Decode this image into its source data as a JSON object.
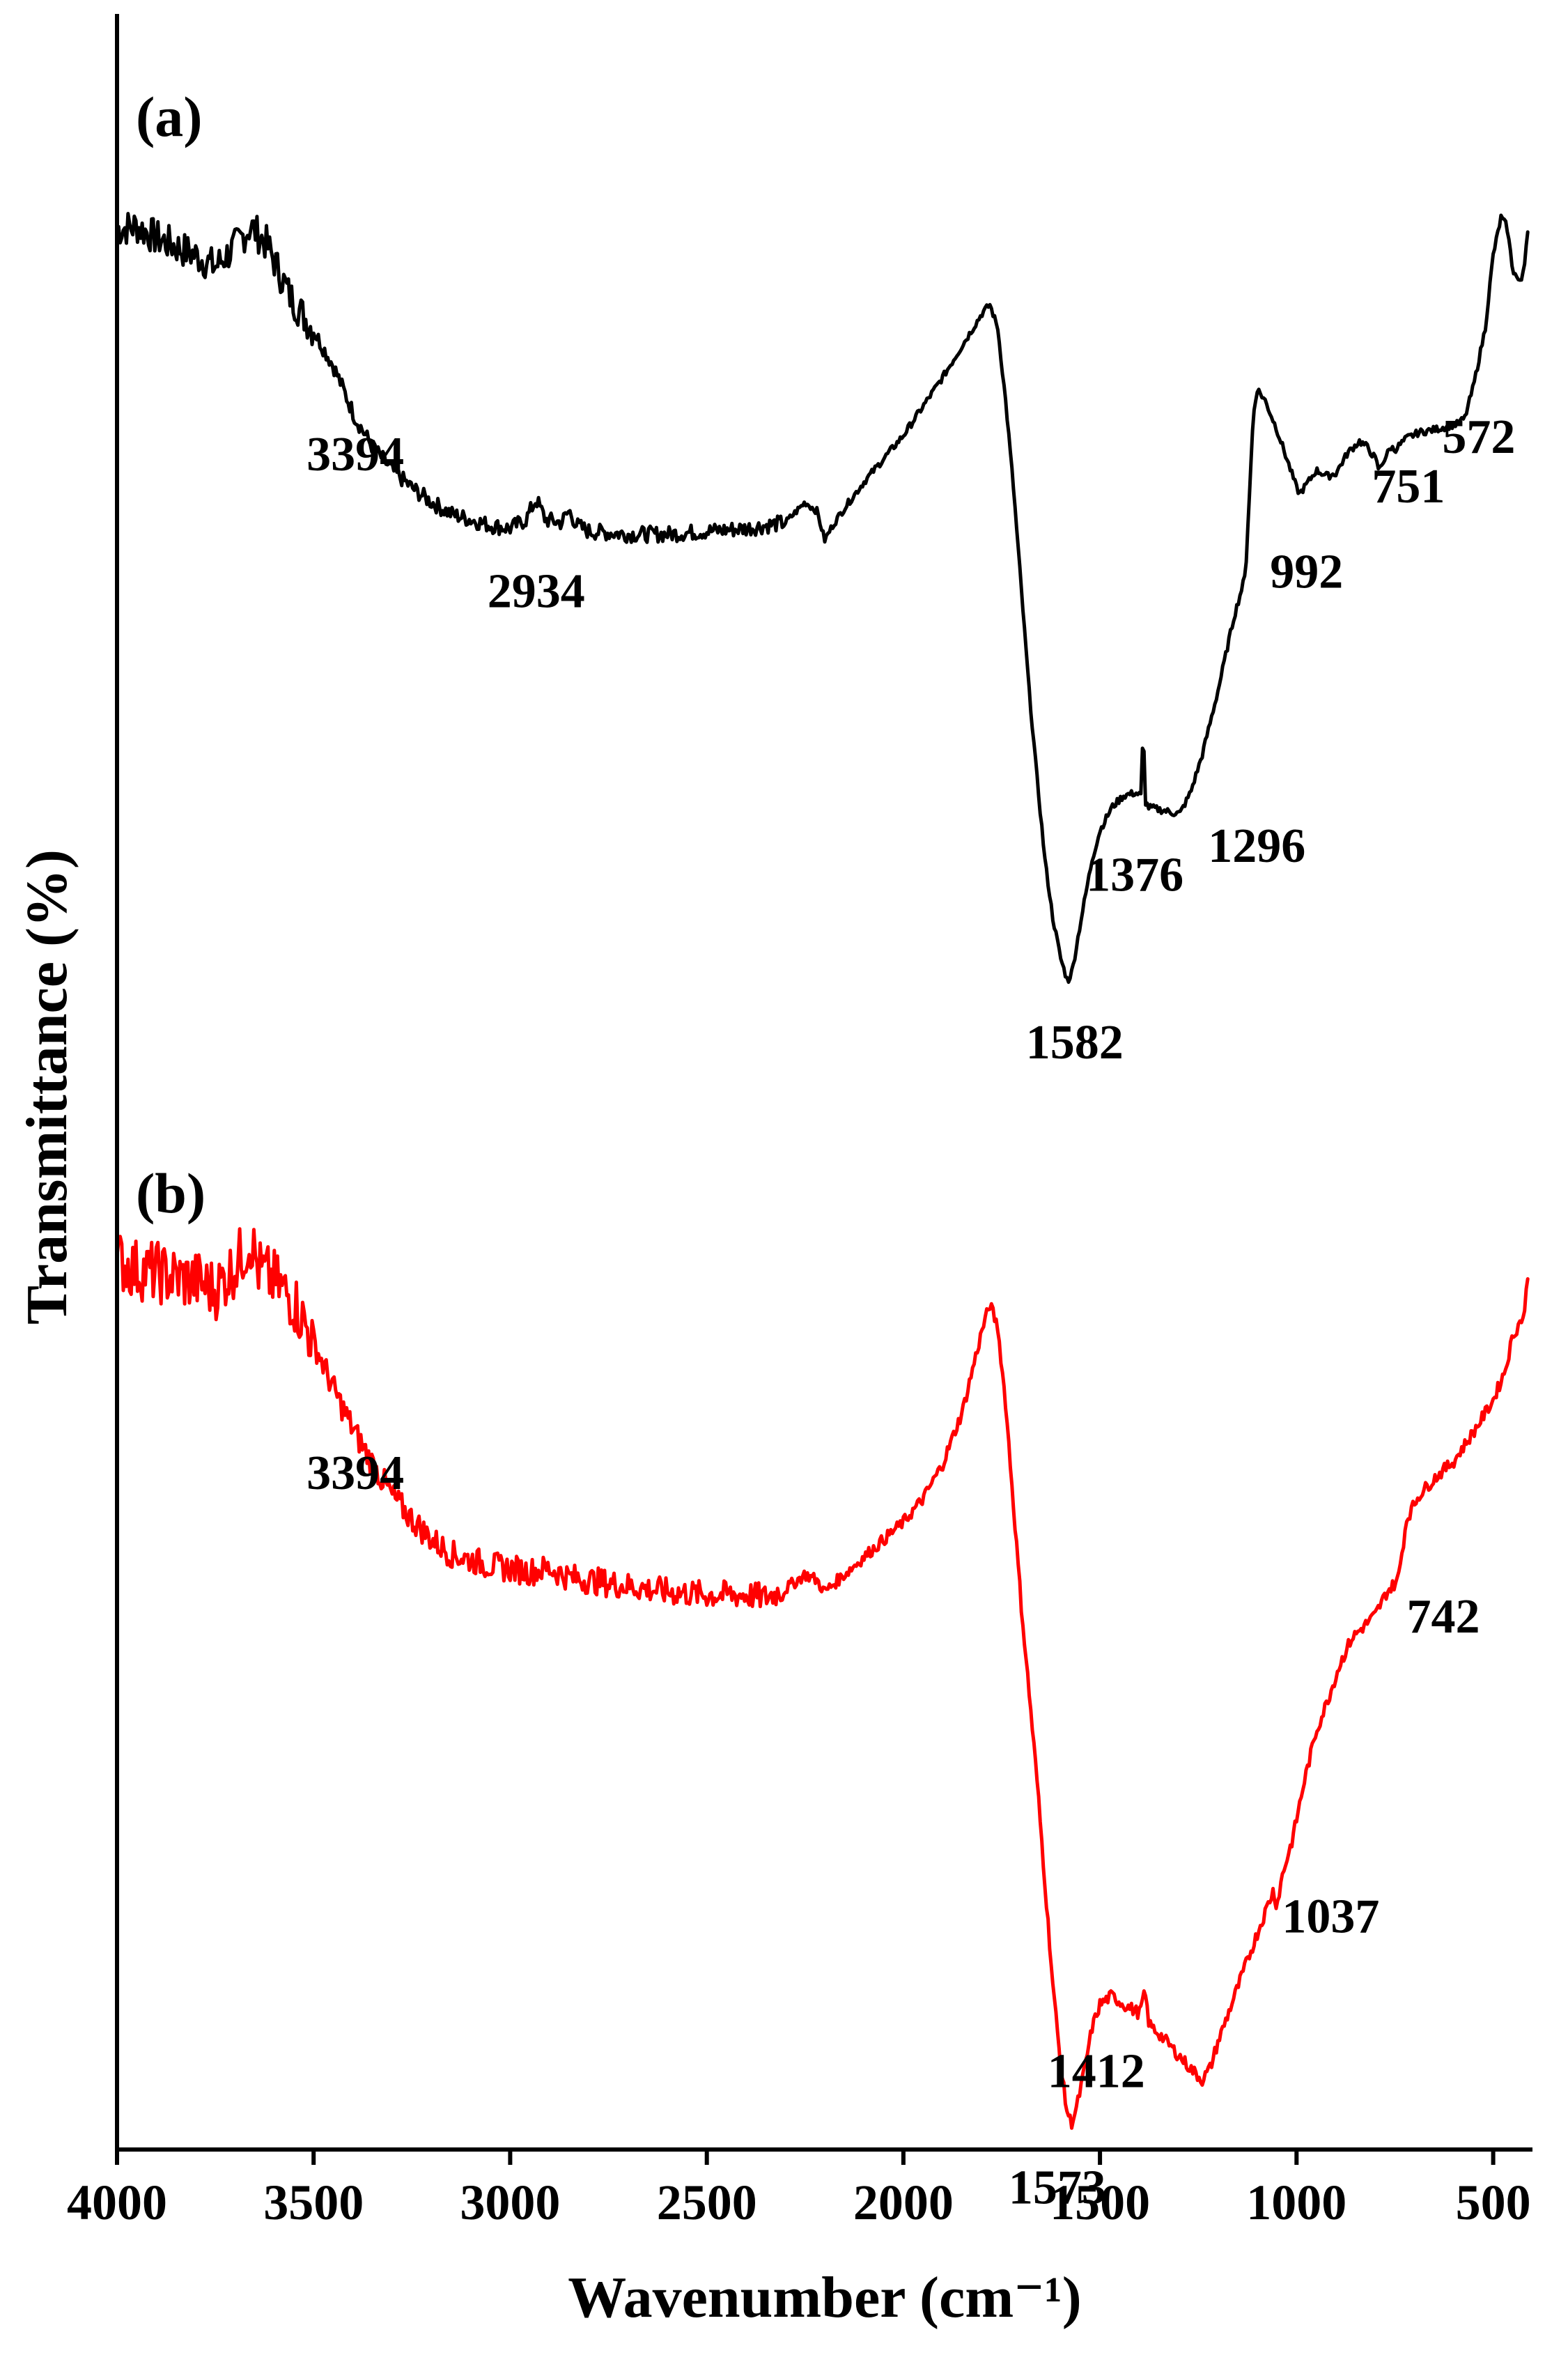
{
  "chart_data": {
    "type": "line",
    "title": "",
    "xlabel": "Wavenumber (cm⁻¹)",
    "ylabel": "Transmittance (%)",
    "xlim": [
      4000,
      400
    ],
    "x_reversed": true,
    "xticks": [
      "4000",
      "3500",
      "3000",
      "2500",
      "2000",
      "1500",
      "1000",
      "500"
    ],
    "grid": false,
    "legend": "none",
    "series": [
      {
        "panel": "(a)",
        "color": "#000000",
        "points": [
          [
            4000,
            8.9
          ],
          [
            3950,
            9.0
          ],
          [
            3900,
            8.6
          ],
          [
            3850,
            8.3
          ],
          [
            3800,
            8.0
          ],
          [
            3750,
            7.6
          ],
          [
            3700,
            8.3
          ],
          [
            3660,
            9.0
          ],
          [
            3620,
            8.4
          ],
          [
            3560,
            6.6
          ],
          [
            3500,
            5.4
          ],
          [
            3450,
            4.2
          ],
          [
            3394,
            2.4
          ],
          [
            3350,
            1.4
          ],
          [
            3300,
            0.6
          ],
          [
            3250,
            0.0
          ],
          [
            3200,
            -0.5
          ],
          [
            3150,
            -0.9
          ],
          [
            3100,
            -1.1
          ],
          [
            3050,
            -1.3
          ],
          [
            3000,
            -1.4
          ],
          [
            2960,
            -1.1
          ],
          [
            2934,
            -0.4
          ],
          [
            2910,
            -1.1
          ],
          [
            2870,
            -1.2
          ],
          [
            2850,
            -0.8
          ],
          [
            2830,
            -1.3
          ],
          [
            2800,
            -1.5
          ],
          [
            2700,
            -1.6
          ],
          [
            2600,
            -1.6
          ],
          [
            2500,
            -1.5
          ],
          [
            2400,
            -1.4
          ],
          [
            2350,
            -1.3
          ],
          [
            2300,
            -1.2
          ],
          [
            2250,
            -0.5
          ],
          [
            2220,
            -0.8
          ],
          [
            2200,
            -1.8
          ],
          [
            2180,
            -1.3
          ],
          [
            2150,
            -0.7
          ],
          [
            2100,
            0.2
          ],
          [
            2050,
            1.0
          ],
          [
            2000,
            1.8
          ],
          [
            1950,
            2.8
          ],
          [
            1900,
            3.8
          ],
          [
            1850,
            4.9
          ],
          [
            1800,
            6.0
          ],
          [
            1780,
            6.3
          ],
          [
            1760,
            5.5
          ],
          [
            1740,
            3.0
          ],
          [
            1720,
            0.0
          ],
          [
            1700,
            -3.5
          ],
          [
            1680,
            -7.0
          ],
          [
            1660,
            -10.0
          ],
          [
            1640,
            -12.8
          ],
          [
            1620,
            -14.8
          ],
          [
            1600,
            -16.2
          ],
          [
            1582,
            -17.0
          ],
          [
            1570,
            -16.6
          ],
          [
            1550,
            -15.0
          ],
          [
            1520,
            -12.8
          ],
          [
            1500,
            -11.8
          ],
          [
            1470,
            -11.0
          ],
          [
            1440,
            -10.6
          ],
          [
            1410,
            -10.5
          ],
          [
            1395,
            -10.6
          ],
          [
            1390,
            -8.0
          ],
          [
            1385,
            -10.8
          ],
          [
            1376,
            -11.0
          ],
          [
            1340,
            -11.1
          ],
          [
            1310,
            -11.2
          ],
          [
            1296,
            -11.2
          ],
          [
            1270,
            -10.5
          ],
          [
            1240,
            -9.2
          ],
          [
            1200,
            -7.0
          ],
          [
            1160,
            -4.5
          ],
          [
            1130,
            -3.0
          ],
          [
            1110,
            2.5
          ],
          [
            1100,
            3.4
          ],
          [
            1080,
            3.0
          ],
          [
            1050,
            2.0
          ],
          [
            1020,
            0.8
          ],
          [
            1000,
            0.0
          ],
          [
            992,
            -0.2
          ],
          [
            970,
            0.2
          ],
          [
            950,
            0.6
          ],
          [
            920,
            0.4
          ],
          [
            900,
            0.5
          ],
          [
            870,
            1.2
          ],
          [
            840,
            1.6
          ],
          [
            820,
            1.4
          ],
          [
            800,
            1.0
          ],
          [
            790,
            0.6
          ],
          [
            780,
            0.9
          ],
          [
            760,
            1.4
          ],
          [
            751,
            1.3
          ],
          [
            720,
            1.7
          ],
          [
            690,
            1.9
          ],
          [
            650,
            2.0
          ],
          [
            620,
            2.1
          ],
          [
            590,
            2.2
          ],
          [
            572,
            2.4
          ],
          [
            550,
            3.5
          ],
          [
            520,
            5.5
          ],
          [
            500,
            8.0
          ],
          [
            480,
            9.3
          ],
          [
            465,
            9.0
          ],
          [
            450,
            7.5
          ],
          [
            430,
            7.0
          ],
          [
            420,
            7.8
          ],
          [
            410,
            9.2
          ]
        ],
        "annotations": [
          {
            "x": 3394,
            "label": "3394"
          },
          {
            "x": 2934,
            "label": "2934"
          },
          {
            "x": 1582,
            "label": "1582"
          },
          {
            "x": 1376,
            "label": "1376"
          },
          {
            "x": 1296,
            "label": "1296"
          },
          {
            "x": 992,
            "label": "992"
          },
          {
            "x": 751,
            "label": "751"
          },
          {
            "x": 572,
            "label": "572"
          }
        ]
      },
      {
        "panel": "(b)",
        "color": "#ff0000",
        "points": [
          [
            4000,
            -26.6
          ],
          [
            3950,
            -26.9
          ],
          [
            3900,
            -27.0
          ],
          [
            3850,
            -27.2
          ],
          [
            3800,
            -27.3
          ],
          [
            3750,
            -27.6
          ],
          [
            3700,
            -26.8
          ],
          [
            3660,
            -25.9
          ],
          [
            3640,
            -26.9
          ],
          [
            3600,
            -27.3
          ],
          [
            3550,
            -28.0
          ],
          [
            3500,
            -29.4
          ],
          [
            3450,
            -31.0
          ],
          [
            3400,
            -32.4
          ],
          [
            3350,
            -33.6
          ],
          [
            3300,
            -34.7
          ],
          [
            3250,
            -35.5
          ],
          [
            3200,
            -36.2
          ],
          [
            3150,
            -36.7
          ],
          [
            3100,
            -36.9
          ],
          [
            3050,
            -37.1
          ],
          [
            3000,
            -37.2
          ],
          [
            2950,
            -37.3
          ],
          [
            2900,
            -37.2
          ],
          [
            2850,
            -37.5
          ],
          [
            2800,
            -37.6
          ],
          [
            2700,
            -37.8
          ],
          [
            2600,
            -38.0
          ],
          [
            2500,
            -38.1
          ],
          [
            2400,
            -38.1
          ],
          [
            2350,
            -38.2
          ],
          [
            2300,
            -37.9
          ],
          [
            2250,
            -37.4
          ],
          [
            2220,
            -37.6
          ],
          [
            2200,
            -38.0
          ],
          [
            2150,
            -37.4
          ],
          [
            2100,
            -36.8
          ],
          [
            2050,
            -36.2
          ],
          [
            2000,
            -35.6
          ],
          [
            1950,
            -34.8
          ],
          [
            1900,
            -33.6
          ],
          [
            1850,
            -31.8
          ],
          [
            1800,
            -29.0
          ],
          [
            1780,
            -28.1
          ],
          [
            1760,
            -28.9
          ],
          [
            1740,
            -31.5
          ],
          [
            1720,
            -35.0
          ],
          [
            1700,
            -38.5
          ],
          [
            1680,
            -41.5
          ],
          [
            1660,
            -44.5
          ],
          [
            1640,
            -48.0
          ],
          [
            1620,
            -51.5
          ],
          [
            1600,
            -54.3
          ],
          [
            1585,
            -55.8
          ],
          [
            1573,
            -56.3
          ],
          [
            1560,
            -55.8
          ],
          [
            1540,
            -54.5
          ],
          [
            1520,
            -53.0
          ],
          [
            1500,
            -52.2
          ],
          [
            1470,
            -51.9
          ],
          [
            1440,
            -52.2
          ],
          [
            1400,
            -52.5
          ],
          [
            1385,
            -51.8
          ],
          [
            1375,
            -52.9
          ],
          [
            1350,
            -53.2
          ],
          [
            1310,
            -53.8
          ],
          [
            1270,
            -54.4
          ],
          [
            1240,
            -54.8
          ],
          [
            1220,
            -54.4
          ],
          [
            1200,
            -53.5
          ],
          [
            1160,
            -52.0
          ],
          [
            1120,
            -50.5
          ],
          [
            1090,
            -49.4
          ],
          [
            1060,
            -48.3
          ],
          [
            1050,
            -48.8
          ],
          [
            1037,
            -47.8
          ],
          [
            1010,
            -46.5
          ],
          [
            980,
            -44.5
          ],
          [
            950,
            -42.8
          ],
          [
            920,
            -41.7
          ],
          [
            890,
            -40.5
          ],
          [
            860,
            -39.6
          ],
          [
            830,
            -39.2
          ],
          [
            800,
            -38.8
          ],
          [
            770,
            -38.0
          ],
          [
            742,
            -37.6
          ],
          [
            720,
            -35.5
          ],
          [
            690,
            -34.7
          ],
          [
            650,
            -34.1
          ],
          [
            600,
            -33.5
          ],
          [
            550,
            -32.5
          ],
          [
            500,
            -31.4
          ],
          [
            470,
            -30.4
          ],
          [
            450,
            -29.2
          ],
          [
            420,
            -28.4
          ],
          [
            410,
            -26.7
          ]
        ],
        "annotations": [
          {
            "x": 3394,
            "label": "3394"
          },
          {
            "x": 1573,
            "label": "1573"
          },
          {
            "x": 1412,
            "label": "1412"
          },
          {
            "x": 1037,
            "label": "1037"
          },
          {
            "x": 742,
            "label": "742"
          }
        ]
      }
    ]
  }
}
